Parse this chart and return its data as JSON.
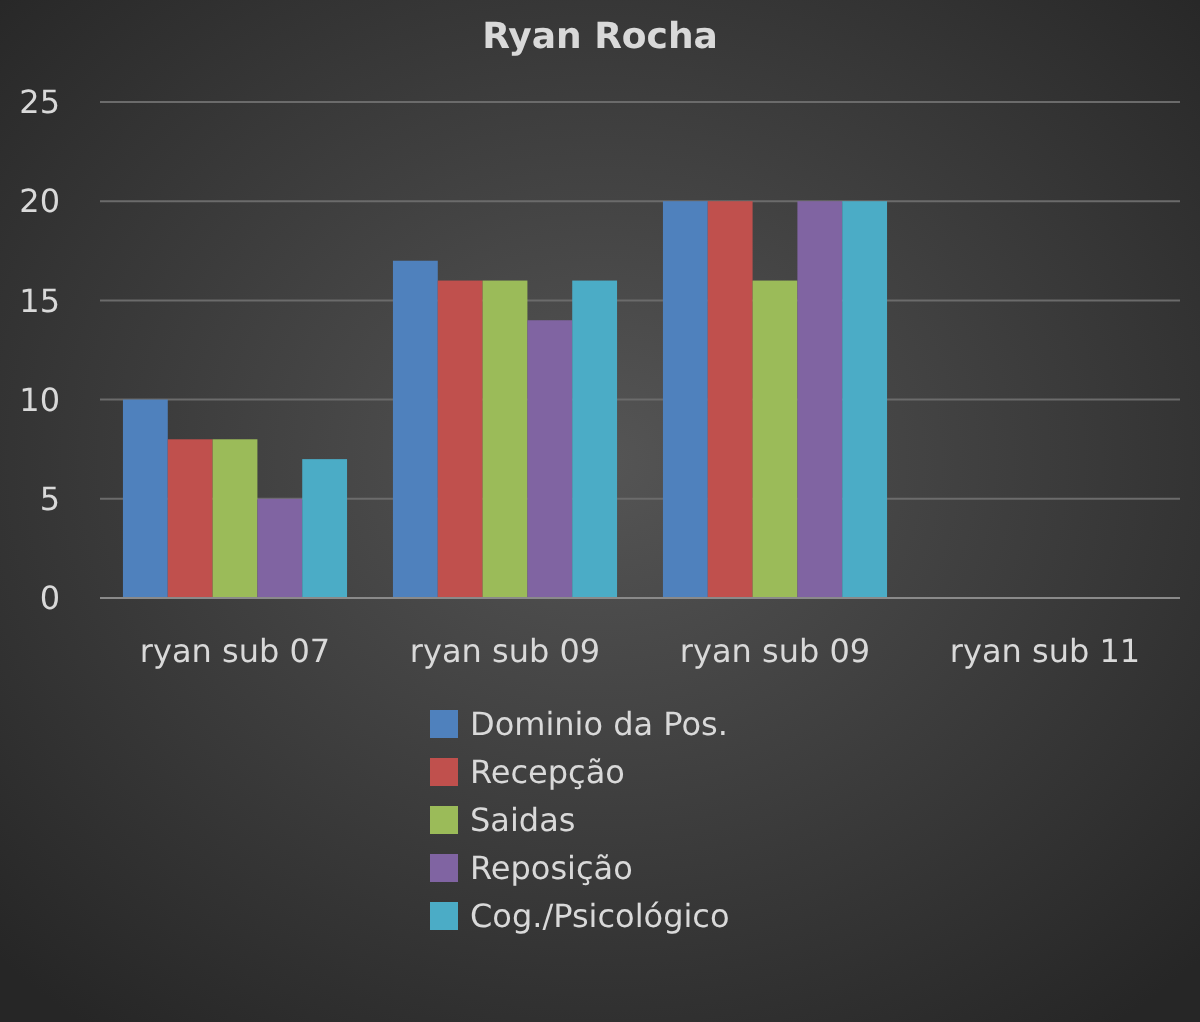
{
  "chart_data": {
    "type": "bar",
    "title": "Ryan Rocha",
    "categories": [
      "ryan sub 07",
      "ryan sub 09",
      "ryan sub 09",
      "ryan sub 11"
    ],
    "series": [
      {
        "name": "Dominio da Pos.",
        "color": "#4f81bd",
        "values": [
          10,
          17,
          20,
          0
        ]
      },
      {
        "name": "Recepção",
        "color": "#c0504d",
        "values": [
          8,
          16,
          20,
          0
        ]
      },
      {
        "name": "Saidas",
        "color": "#9bbb59",
        "values": [
          8,
          16,
          16,
          0
        ]
      },
      {
        "name": "Reposição",
        "color": "#8064a2",
        "values": [
          5,
          14,
          20,
          0
        ]
      },
      {
        "name": "Cog./Psicológico",
        "color": "#4bacc6",
        "values": [
          7,
          16,
          20,
          0
        ]
      }
    ],
    "ylim": [
      0,
      25
    ],
    "yticks": [
      0,
      5,
      10,
      15,
      20,
      25
    ],
    "grid": "y",
    "legend": "bottom"
  }
}
